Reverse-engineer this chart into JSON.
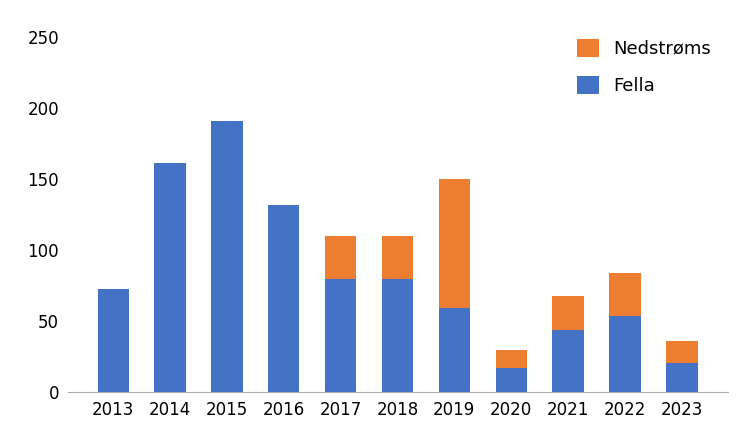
{
  "years": [
    2013,
    2014,
    2015,
    2016,
    2017,
    2018,
    2019,
    2020,
    2021,
    2022,
    2023
  ],
  "fella": [
    73,
    161,
    191,
    132,
    80,
    80,
    59,
    17,
    44,
    54,
    21
  ],
  "nedstroms": [
    0,
    0,
    0,
    0,
    30,
    30,
    91,
    13,
    24,
    30,
    15
  ],
  "fella_color": "#4472C4",
  "nedstroms_color": "#ED7D31",
  "legend_nedstroms": "Nedstrøms",
  "legend_fella": "Fella",
  "ylim": [
    0,
    260
  ],
  "yticks": [
    0,
    50,
    100,
    150,
    200,
    250
  ],
  "background_color": "#ffffff",
  "bar_width": 0.55,
  "legend_fontsize": 13,
  "tick_fontsize": 12
}
